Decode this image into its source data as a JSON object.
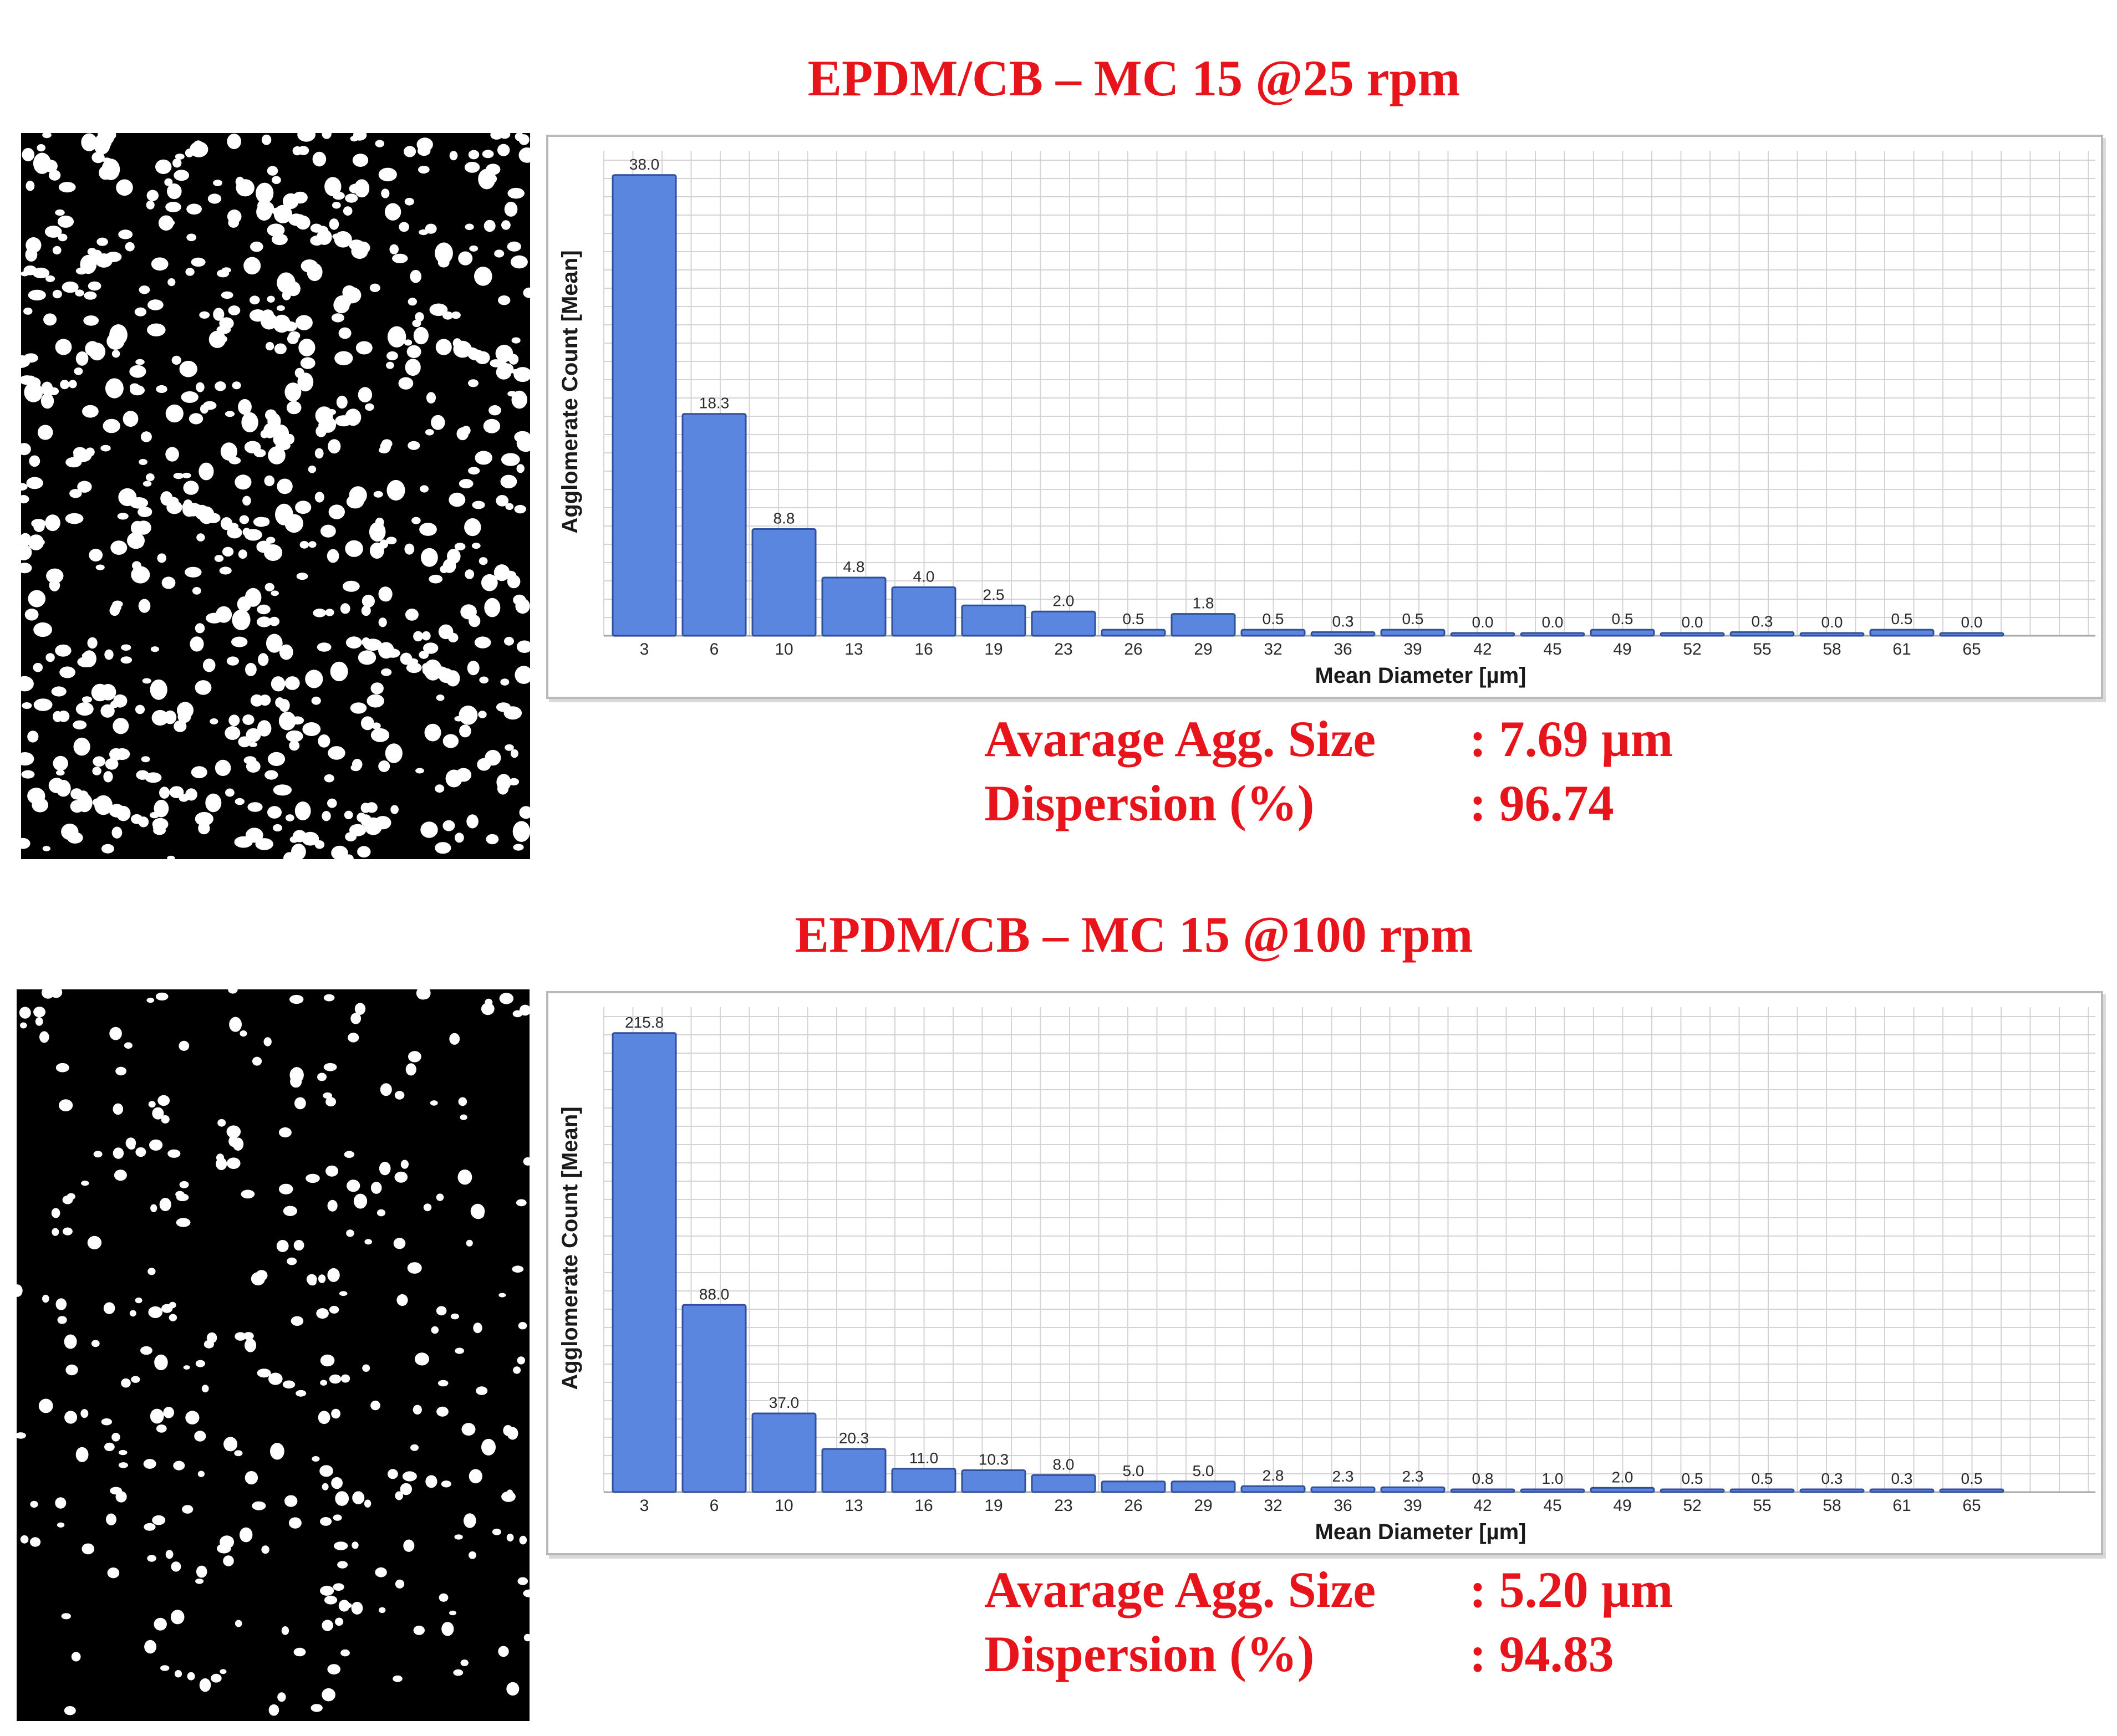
{
  "panels": [
    {
      "title": "EPDM/CB – MC 15 @25 rpm",
      "stats": [
        {
          "label": "Avarage Agg. Size",
          "value": ": 7.69 µm"
        },
        {
          "label": "Dispersion (%)",
          "value": ": 96.74"
        }
      ]
    },
    {
      "title": "EPDM/CB – MC 15 @100 rpm",
      "stats": [
        {
          "label": "Avarage Agg. Size",
          "value": ": 5.20 µm"
        },
        {
          "label": "Dispersion (%)",
          "value": ": 94.83"
        }
      ]
    }
  ],
  "colors": {
    "title_red": "#e8141b",
    "bar_fill": "#5b86e0",
    "bar_stroke": "#2f4f9a",
    "grid": "#d4d4d4",
    "axis_text": "#2a2a2a"
  },
  "chart_data": [
    {
      "type": "bar",
      "title": "",
      "xlabel": "Mean Diameter [µm]",
      "ylabel": "Agglomerate Count  [Mean]",
      "categories": [
        "3",
        "6",
        "10",
        "13",
        "16",
        "19",
        "23",
        "26",
        "29",
        "32",
        "36",
        "39",
        "42",
        "45",
        "49",
        "52",
        "55",
        "58",
        "61",
        "65"
      ],
      "values": [
        38.0,
        18.3,
        8.8,
        4.8,
        4.0,
        2.5,
        2.0,
        0.5,
        1.8,
        0.5,
        0.3,
        0.5,
        0.0,
        0.0,
        0.5,
        0.0,
        0.3,
        0.0,
        0.5,
        0.0
      ],
      "value_labels": [
        "38.0",
        "18.3",
        "8.8",
        "4.8",
        "4.0",
        "2.5",
        "2.0",
        "0.5",
        "1.8",
        "0.5",
        "0.3",
        "0.5",
        "0.0",
        "0.0",
        "0.5",
        "0.0",
        "0.3",
        "0.0",
        "0.5",
        "0.0"
      ],
      "ylim": [
        0,
        40
      ],
      "grid": true,
      "legend": "none"
    },
    {
      "type": "bar",
      "title": "",
      "xlabel": "Mean Diameter [µm]",
      "ylabel": "Agglomerate Count  [Mean]",
      "categories": [
        "3",
        "6",
        "10",
        "13",
        "16",
        "19",
        "23",
        "26",
        "29",
        "32",
        "36",
        "39",
        "42",
        "45",
        "49",
        "52",
        "55",
        "58",
        "61",
        "65"
      ],
      "values": [
        215.8,
        88.0,
        37.0,
        20.3,
        11.0,
        10.3,
        8.0,
        5.0,
        5.0,
        2.8,
        2.3,
        2.3,
        0.8,
        1.0,
        2.0,
        0.5,
        0.5,
        0.3,
        0.3,
        0.5
      ],
      "value_labels": [
        "215.8",
        "88.0",
        "37.0",
        "20.3",
        "11.0",
        "10.3",
        "8.0",
        "5.0",
        "5.0",
        "2.8",
        "2.3",
        "2.3",
        "0.8",
        "1.0",
        "2.0",
        "0.5",
        "0.5",
        "0.3",
        "0.3",
        "0.5"
      ],
      "ylim": [
        0,
        228
      ],
      "grid": true,
      "legend": "none"
    }
  ]
}
